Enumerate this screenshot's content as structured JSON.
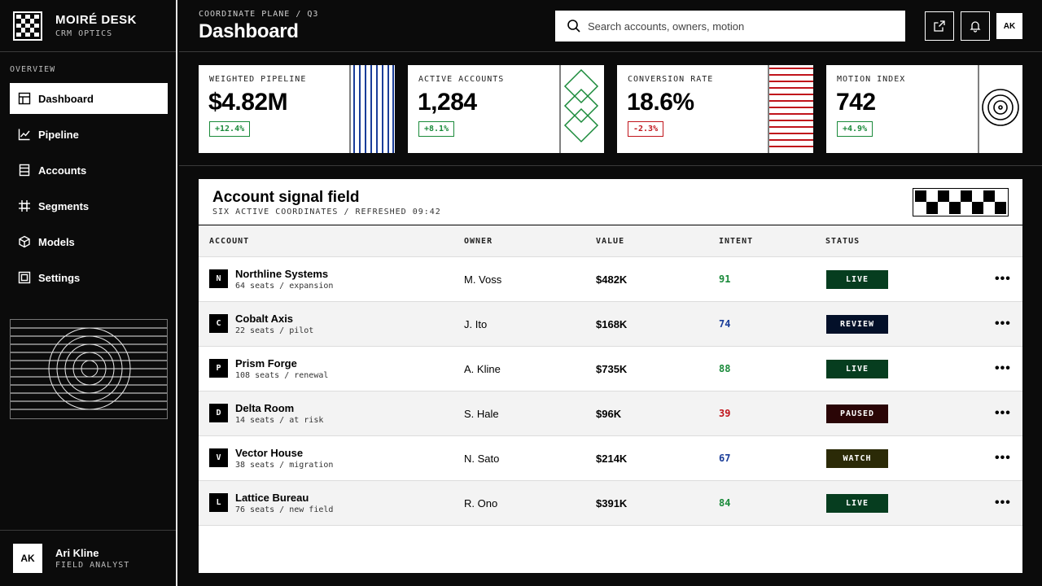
{
  "brand": {
    "title": "MOIRÉ DESK",
    "subtitle": "CRM OPTICS"
  },
  "sidebar": {
    "section": "OVERVIEW",
    "items": [
      {
        "label": "Dashboard",
        "icon": "layout-icon",
        "active": true
      },
      {
        "label": "Pipeline",
        "icon": "line-chart-icon"
      },
      {
        "label": "Accounts",
        "icon": "stack-icon"
      },
      {
        "label": "Segments",
        "icon": "grid-hash-icon"
      },
      {
        "label": "Models",
        "icon": "cube-icon"
      },
      {
        "label": "Settings",
        "icon": "square-frame-icon"
      }
    ]
  },
  "user": {
    "initials": "AK",
    "name": "Ari Kline",
    "role": "FIELD ANALYST"
  },
  "header": {
    "breadcrumb": "COORDINATE PLANE / Q3",
    "title": "Dashboard",
    "search_placeholder": "Search accounts, owners, motion",
    "avatar": "AK"
  },
  "kpis": [
    {
      "label": "WEIGHTED PIPELINE",
      "value": "$4.82M",
      "delta": "+12.4%",
      "color": "#1a8a3a"
    },
    {
      "label": "ACTIVE ACCOUNTS",
      "value": "1,284",
      "delta": "+8.1%",
      "color": "#1a8a3a"
    },
    {
      "label": "CONVERSION RATE",
      "value": "18.6%",
      "delta": "-2.3%",
      "color": "#c0141b"
    },
    {
      "label": "MOTION INDEX",
      "value": "742",
      "delta": "+4.9%",
      "color": "#1a8a3a"
    }
  ],
  "table": {
    "title": "Account signal field",
    "subtitle": "SIX ACTIVE COORDINATES / REFRESHED 09:42",
    "columns": [
      "ACCOUNT",
      "OWNER",
      "VALUE",
      "INTENT",
      "STATUS"
    ],
    "rows": [
      {
        "mark": "N",
        "name": "Northline Systems",
        "meta": "64 seats / expansion",
        "owner": "M. Voss",
        "value": "$482K",
        "intent": "91",
        "intent_color": "#1a8a3a",
        "status": "LIVE",
        "status_color": "#063d1f"
      },
      {
        "mark": "C",
        "name": "Cobalt Axis",
        "meta": "22 seats / pilot",
        "owner": "J. Ito",
        "value": "$168K",
        "intent": "74",
        "intent_color": "#1a3d99",
        "status": "REVIEW",
        "status_color": "#031029"
      },
      {
        "mark": "P",
        "name": "Prism Forge",
        "meta": "108 seats / renewal",
        "owner": "A. Kline",
        "value": "$735K",
        "intent": "88",
        "intent_color": "#1a8a3a",
        "status": "LIVE",
        "status_color": "#063d1f"
      },
      {
        "mark": "D",
        "name": "Delta Room",
        "meta": "14 seats / at risk",
        "owner": "S. Hale",
        "value": "$96K",
        "intent": "39",
        "intent_color": "#c0141b",
        "status": "PAUSED",
        "status_color": "#2a0506"
      },
      {
        "mark": "V",
        "name": "Vector House",
        "meta": "38 seats / migration",
        "owner": "N. Sato",
        "value": "$214K",
        "intent": "67",
        "intent_color": "#1a3d99",
        "status": "WATCH",
        "status_color": "#2b2a07"
      },
      {
        "mark": "L",
        "name": "Lattice Bureau",
        "meta": "76 seats / new field",
        "owner": "R. Ono",
        "value": "$391K",
        "intent": "84",
        "intent_color": "#1a8a3a",
        "status": "LIVE",
        "status_color": "#063d1f"
      }
    ]
  }
}
